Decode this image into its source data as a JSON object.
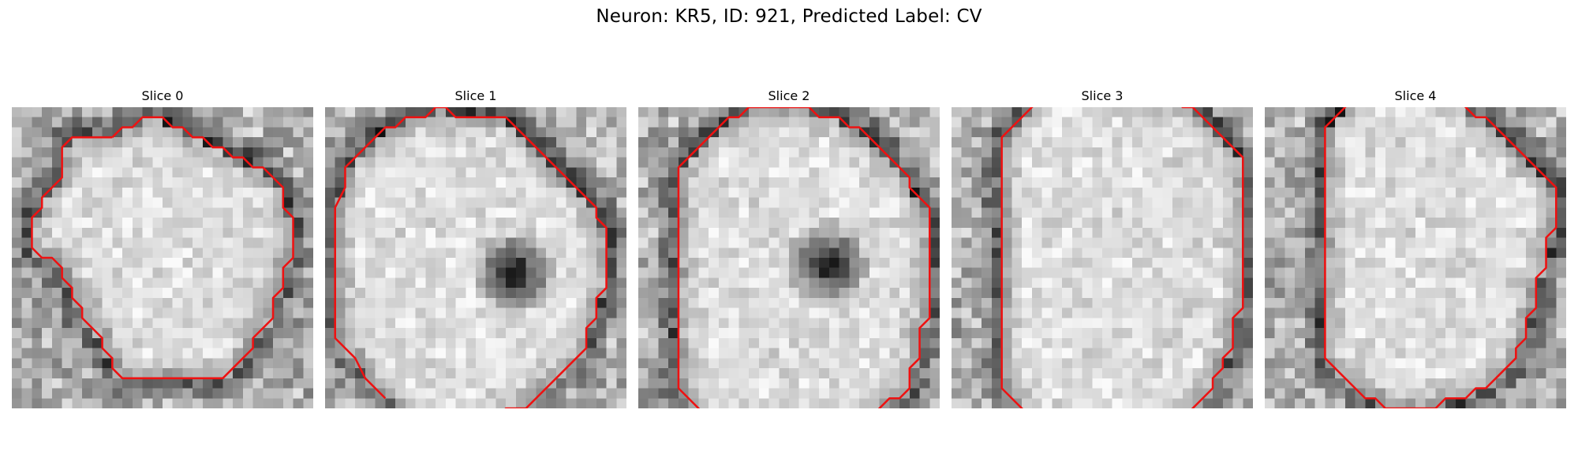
{
  "figure": {
    "title": "Neuron: KR5, ID: 921, Predicted Label: CV"
  },
  "slices": [
    {
      "title": "Slice 0",
      "dark_spot": null,
      "contour": [
        [
          9,
          2
        ],
        [
          5,
          2
        ],
        [
          4,
          3
        ],
        [
          4,
          6
        ],
        [
          3,
          7
        ],
        [
          2,
          8
        ],
        [
          2,
          9
        ],
        [
          1,
          10
        ],
        [
          1,
          12
        ],
        [
          1,
          13
        ],
        [
          2,
          14
        ],
        [
          3,
          14
        ],
        [
          4,
          15
        ],
        [
          4,
          16
        ],
        [
          5,
          17
        ],
        [
          5,
          18
        ],
        [
          6,
          19
        ],
        [
          6,
          20
        ],
        [
          7,
          21
        ],
        [
          8,
          22
        ],
        [
          8,
          23
        ],
        [
          9,
          24
        ],
        [
          9,
          25
        ],
        [
          10,
          26
        ],
        [
          13,
          26
        ],
        [
          15,
          26
        ],
        [
          17,
          26
        ],
        [
          19,
          26
        ],
        [
          20,
          26
        ],
        [
          21,
          25
        ],
        [
          22,
          24
        ],
        [
          23,
          23
        ],
        [
          23,
          22
        ],
        [
          24,
          21
        ],
        [
          25,
          20
        ],
        [
          25,
          18
        ],
        [
          26,
          17
        ],
        [
          26,
          15
        ],
        [
          27,
          14
        ],
        [
          27,
          10
        ],
        [
          26,
          9
        ],
        [
          26,
          7
        ],
        [
          25,
          6
        ],
        [
          24,
          5
        ],
        [
          23,
          5
        ],
        [
          22,
          4
        ],
        [
          21,
          4
        ],
        [
          20,
          3
        ],
        [
          19,
          3
        ],
        [
          18,
          2
        ],
        [
          17,
          2
        ],
        [
          16,
          1
        ],
        [
          15,
          1
        ],
        [
          14,
          0
        ],
        [
          12,
          0
        ],
        [
          11,
          1
        ],
        [
          10,
          1
        ],
        [
          9,
          2
        ]
      ]
    },
    {
      "title": "Slice 1",
      "dark_spot": [
        0.63,
        0.55
      ],
      "contour": [
        [
          5,
          28
        ],
        [
          4,
          27
        ],
        [
          3,
          26
        ],
        [
          2,
          24
        ],
        [
          1,
          23
        ],
        [
          0,
          22
        ],
        [
          0,
          17
        ],
        [
          0,
          12
        ],
        [
          0,
          9
        ],
        [
          1,
          7
        ],
        [
          1,
          5
        ],
        [
          2,
          4
        ],
        [
          3,
          3
        ],
        [
          4,
          2
        ],
        [
          5,
          1
        ],
        [
          6,
          1
        ],
        [
          7,
          0
        ],
        [
          8,
          0
        ],
        [
          9,
          0
        ],
        [
          10,
          -1
        ],
        [
          11,
          -1
        ],
        [
          12,
          0
        ],
        [
          13,
          0
        ],
        [
          15,
          0
        ],
        [
          17,
          0
        ],
        [
          18,
          1
        ],
        [
          19,
          2
        ],
        [
          20,
          3
        ],
        [
          21,
          4
        ],
        [
          22,
          5
        ],
        [
          23,
          6
        ],
        [
          24,
          7
        ],
        [
          25,
          8
        ],
        [
          26,
          9
        ],
        [
          26,
          10
        ],
        [
          27,
          11
        ],
        [
          27,
          14
        ],
        [
          27,
          17
        ],
        [
          26,
          18
        ],
        [
          26,
          20
        ],
        [
          25,
          21
        ],
        [
          25,
          23
        ],
        [
          24,
          24
        ],
        [
          23,
          25
        ],
        [
          22,
          26
        ],
        [
          21,
          27
        ],
        [
          20,
          28
        ],
        [
          19,
          29
        ],
        [
          17,
          29
        ],
        [
          16,
          30
        ]
      ]
    },
    {
      "title": "Slice 2",
      "dark_spot": [
        0.63,
        0.52
      ],
      "contour": [
        [
          6,
          30
        ],
        [
          5,
          29
        ],
        [
          4,
          28
        ],
        [
          3,
          27
        ],
        [
          3,
          24
        ],
        [
          3,
          20
        ],
        [
          3,
          16
        ],
        [
          3,
          12
        ],
        [
          3,
          8
        ],
        [
          3,
          5
        ],
        [
          4,
          4
        ],
        [
          5,
          3
        ],
        [
          6,
          2
        ],
        [
          7,
          1
        ],
        [
          8,
          0
        ],
        [
          9,
          0
        ],
        [
          10,
          -1
        ],
        [
          12,
          -1
        ],
        [
          14,
          -1
        ],
        [
          16,
          -1
        ],
        [
          17,
          0
        ],
        [
          19,
          0
        ],
        [
          20,
          1
        ],
        [
          21,
          1
        ],
        [
          22,
          2
        ],
        [
          23,
          3
        ],
        [
          24,
          4
        ],
        [
          25,
          5
        ],
        [
          26,
          6
        ],
        [
          26,
          7
        ],
        [
          27,
          8
        ],
        [
          28,
          9
        ],
        [
          28,
          12
        ],
        [
          28,
          17
        ],
        [
          28,
          20
        ],
        [
          27,
          21
        ],
        [
          27,
          24
        ],
        [
          26,
          25
        ],
        [
          26,
          27
        ],
        [
          25,
          28
        ],
        [
          24,
          28
        ],
        [
          23,
          29
        ],
        [
          22,
          30
        ]
      ]
    },
    {
      "title": "Slice 3",
      "dark_spot": null,
      "contour": [
        [
          8,
          -2
        ],
        [
          7,
          -1
        ],
        [
          6,
          0
        ],
        [
          5,
          1
        ],
        [
          4,
          2
        ],
        [
          4,
          4
        ],
        [
          4,
          8
        ],
        [
          4,
          12
        ],
        [
          4,
          16
        ],
        [
          4,
          20
        ],
        [
          4,
          24
        ],
        [
          4,
          27
        ],
        [
          5,
          28
        ],
        [
          6,
          29
        ],
        [
          7,
          30
        ],
        [
          8,
          31
        ],
        [
          9,
          31
        ],
        [
          21,
          31
        ],
        [
          22,
          30
        ],
        [
          23,
          29
        ],
        [
          24,
          28
        ],
        [
          25,
          27
        ],
        [
          25,
          26
        ],
        [
          26,
          25
        ],
        [
          26,
          24
        ],
        [
          27,
          23
        ],
        [
          27,
          20
        ],
        [
          28,
          19
        ],
        [
          28,
          16
        ],
        [
          28,
          12
        ],
        [
          28,
          8
        ],
        [
          28,
          4
        ],
        [
          27,
          3
        ],
        [
          26,
          2
        ],
        [
          25,
          1
        ],
        [
          24,
          0
        ],
        [
          23,
          -1
        ],
        [
          22,
          -1
        ],
        [
          21,
          -2
        ],
        [
          19,
          -2
        ],
        [
          18,
          -2
        ],
        [
          17,
          -2
        ],
        [
          16,
          -2
        ],
        [
          15,
          -2
        ],
        [
          14,
          -3
        ],
        [
          13,
          -3
        ]
      ]
    },
    {
      "title": "Slice 4",
      "dark_spot": null,
      "contour": [
        [
          8,
          -2
        ],
        [
          7,
          -1
        ],
        [
          6,
          0
        ],
        [
          5,
          1
        ],
        [
          5,
          4
        ],
        [
          5,
          8
        ],
        [
          5,
          12
        ],
        [
          5,
          16
        ],
        [
          5,
          20
        ],
        [
          5,
          24
        ],
        [
          6,
          25
        ],
        [
          7,
          26
        ],
        [
          8,
          27
        ],
        [
          9,
          28
        ],
        [
          10,
          28
        ],
        [
          11,
          29
        ],
        [
          14,
          29
        ],
        [
          15,
          29
        ],
        [
          16,
          29
        ],
        [
          17,
          28
        ],
        [
          19,
          28
        ],
        [
          20,
          27
        ],
        [
          21,
          27
        ],
        [
          22,
          26
        ],
        [
          23,
          25
        ],
        [
          24,
          24
        ],
        [
          24,
          23
        ],
        [
          25,
          22
        ],
        [
          25,
          20
        ],
        [
          26,
          19
        ],
        [
          26,
          16
        ],
        [
          27,
          15
        ],
        [
          27,
          12
        ],
        [
          28,
          11
        ],
        [
          28,
          7
        ],
        [
          27,
          6
        ],
        [
          26,
          5
        ],
        [
          25,
          4
        ],
        [
          24,
          3
        ],
        [
          23,
          2
        ],
        [
          22,
          1
        ],
        [
          21,
          0
        ],
        [
          20,
          0
        ],
        [
          19,
          -1
        ],
        [
          18,
          -2
        ],
        [
          17,
          -2
        ],
        [
          16,
          -2
        ],
        [
          15,
          -3
        ],
        [
          14,
          -3
        ],
        [
          13,
          -3
        ]
      ]
    }
  ],
  "colors": {
    "contour": "#ee1111"
  }
}
